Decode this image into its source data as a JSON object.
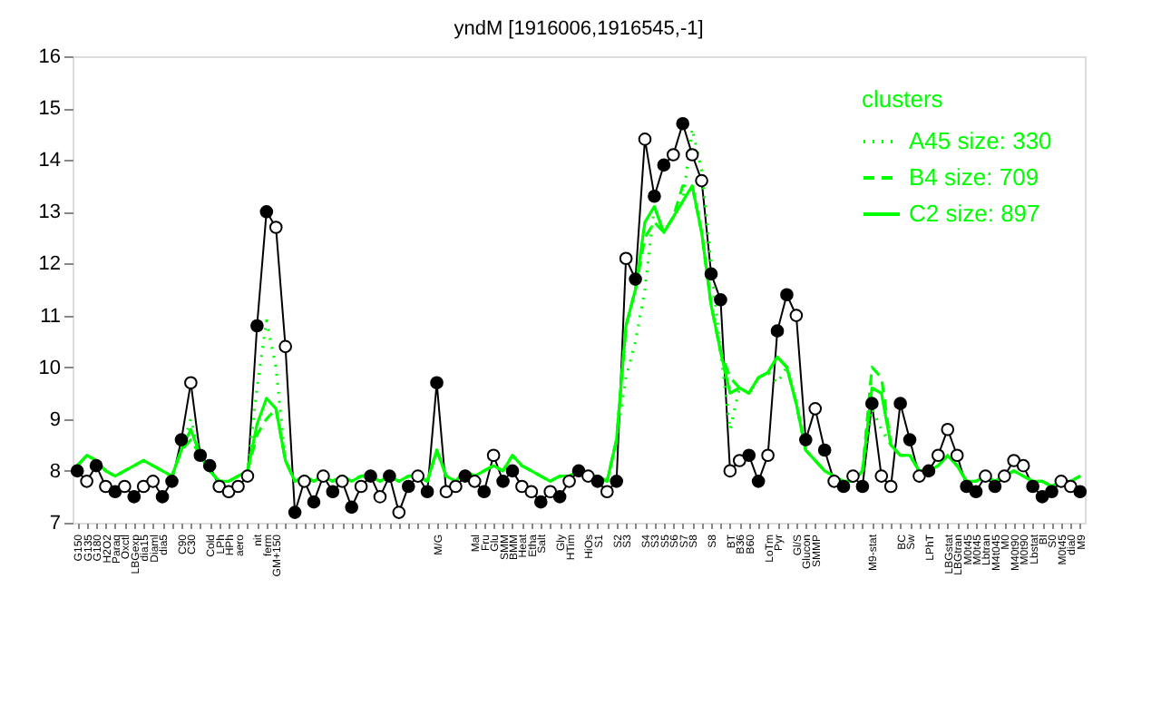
{
  "chart_data": {
    "type": "line",
    "title": "yndM [1916006,1916545,-1]",
    "legend_title": "clusters",
    "legend": "top right",
    "categories": [
      "G150",
      "G135",
      "G180",
      "H2O2",
      "Paraq",
      "Oxctl",
      "LBGexp",
      "dia15",
      "Diaml",
      "dia5",
      null,
      "C90",
      "C30",
      null,
      "Cold",
      "LPh",
      "HPh",
      "aero",
      null,
      "nit",
      "ferm",
      "GM+150",
      null,
      null,
      null,
      null,
      null,
      null,
      null,
      null,
      null,
      null,
      null,
      null,
      null,
      null,
      null,
      null,
      "M/G",
      null,
      null,
      null,
      "Mal",
      "Fru",
      "Glu",
      "SMM",
      "BMM",
      "Heat",
      "Etha",
      "Salt",
      null,
      "Gly",
      "HTim",
      null,
      "HiOs",
      "S1",
      null,
      "S2",
      "S3",
      null,
      "S4",
      "S3",
      "S5",
      "S6",
      "S7",
      "S8",
      null,
      "S8",
      null,
      "BT",
      "B36",
      "B60",
      null,
      "LoTm",
      "Pyr",
      null,
      "Gl/S",
      "Glucon",
      "SMMP",
      null,
      null,
      null,
      null,
      null,
      "M9-stat",
      null,
      null,
      "BC",
      "Sw",
      null,
      "LPhT",
      null,
      "LBGstat",
      "LBGtran",
      "M0t45",
      "M0t45",
      "Lbtran",
      "M4t045",
      "M0",
      "M40t90",
      "M0t90",
      "Lbstat",
      "BI",
      "S0",
      "M0t45",
      "dia0",
      "M9"
    ],
    "ylim": [
      7,
      16
    ],
    "yticks": [
      7,
      8,
      9,
      10,
      11,
      12,
      13,
      14,
      15,
      16
    ],
    "series": [
      {
        "marker": "circle",
        "color": "#000000",
        "values": [
          8.0,
          7.8,
          8.1,
          7.7,
          7.6,
          7.7,
          7.5,
          7.7,
          7.8,
          7.5,
          7.8,
          8.6,
          9.7,
          8.3,
          8.1,
          7.7,
          7.6,
          7.7,
          7.9,
          10.8,
          13.0,
          12.7,
          10.4,
          7.2,
          7.8,
          7.4,
          7.9,
          7.6,
          7.8,
          7.3,
          7.7,
          7.9,
          7.5,
          7.9,
          7.2,
          7.7,
          7.9,
          7.6,
          9.7,
          7.6,
          7.7,
          7.9,
          7.8,
          7.6,
          8.3,
          7.8,
          8.0,
          7.7,
          7.6,
          7.4,
          7.6,
          7.5,
          7.8,
          8.0,
          7.9,
          7.8,
          7.6,
          7.8,
          12.1,
          11.7,
          14.4,
          13.3,
          13.9,
          14.1,
          14.7,
          14.1,
          13.6,
          11.8,
          11.3,
          8.0,
          8.2,
          8.3,
          7.8,
          8.3,
          10.7,
          11.4,
          11.0,
          8.6,
          9.2,
          8.4,
          7.8,
          7.7,
          7.9,
          7.7,
          9.3,
          7.9,
          7.7,
          9.3,
          8.6,
          7.9,
          8.0,
          8.3,
          8.8,
          8.3,
          7.7,
          7.6,
          7.9,
          7.7,
          7.9,
          8.2,
          8.1,
          7.7,
          7.5,
          7.6,
          7.8,
          7.7,
          7.6
        ],
        "colors": [
          "#000000",
          "#ffffff",
          "#000000",
          "#ffffff",
          "#000000",
          "#ffffff",
          "#000000",
          "#ffffff",
          "#ffffff",
          "#000000",
          "#000000",
          "#000000",
          "#ffffff",
          "#000000",
          "#000000",
          "#ffffff",
          "#ffffff",
          "#ffffff",
          "#ffffff",
          "#000000",
          "#000000",
          "#ffffff",
          "#ffffff",
          "#000000",
          "#ffffff",
          "#000000",
          "#ffffff",
          "#000000",
          "#ffffff",
          "#000000",
          "#ffffff",
          "#000000",
          "#ffffff",
          "#000000",
          "#ffffff",
          "#000000",
          "#ffffff",
          "#000000",
          "#000000",
          "#ffffff",
          "#ffffff",
          "#000000",
          "#ffffff",
          "#000000",
          "#ffffff",
          "#000000",
          "#000000",
          "#ffffff",
          "#ffffff",
          "#000000",
          "#ffffff",
          "#000000",
          "#ffffff",
          "#000000",
          "#ffffff",
          "#000000",
          "#ffffff",
          "#000000",
          "#ffffff",
          "#000000",
          "#ffffff",
          "#000000",
          "#000000",
          "#ffffff",
          "#000000",
          "#ffffff",
          "#ffffff",
          "#000000",
          "#000000",
          "#ffffff",
          "#ffffff",
          "#000000",
          "#000000",
          "#ffffff",
          "#000000",
          "#000000",
          "#ffffff",
          "#000000",
          "#ffffff",
          "#000000",
          "#ffffff",
          "#000000",
          "#ffffff",
          "#000000",
          "#000000",
          "#ffffff",
          "#ffffff",
          "#000000",
          "#000000",
          "#ffffff",
          "#000000",
          "#ffffff",
          "#ffffff",
          "#ffffff",
          "#000000",
          "#000000",
          "#ffffff",
          "#000000",
          "#ffffff",
          "#ffffff",
          "#ffffff",
          "#000000",
          "#000000",
          "#000000",
          "#ffffff",
          "#ffffff",
          "#000000"
        ]
      },
      {
        "name": "A45 size: 330",
        "color": "#00ff00",
        "line_style": "dotted",
        "values": [
          8.1,
          8.3,
          8.2,
          8.0,
          7.9,
          8.0,
          8.1,
          8.2,
          8.1,
          8.0,
          7.9,
          8.4,
          9.0,
          8.3,
          8.0,
          7.8,
          7.8,
          7.9,
          8.0,
          9.6,
          10.9,
          10.0,
          8.2,
          7.8,
          7.9,
          7.8,
          7.9,
          7.8,
          7.9,
          7.8,
          7.9,
          7.9,
          7.8,
          7.9,
          7.8,
          7.9,
          7.9,
          7.8,
          8.4,
          7.9,
          7.8,
          8.0,
          7.9,
          8.0,
          8.1,
          8.0,
          8.3,
          8.1,
          8.0,
          7.9,
          7.8,
          7.9,
          7.9,
          8.0,
          7.9,
          7.9,
          7.8,
          8.6,
          9.8,
          10.5,
          11.5,
          13.1,
          12.6,
          12.9,
          13.2,
          14.6,
          13.8,
          12.0,
          10.3,
          8.8,
          9.6,
          9.5,
          9.8,
          9.9,
          9.7,
          10.0,
          9.3,
          8.4,
          8.2,
          8.0,
          7.9,
          7.8,
          7.8,
          8.0,
          9.2,
          8.8,
          8.5,
          8.3,
          8.3,
          8.0,
          8.0,
          8.1,
          8.3,
          8.1,
          7.8,
          7.8,
          7.9,
          7.8,
          7.9,
          8.0,
          7.9,
          7.8,
          7.8,
          7.7,
          7.8,
          7.8,
          7.9
        ]
      },
      {
        "name": "B4 size: 709",
        "color": "#00ff00",
        "line_style": "dashed",
        "values": [
          8.1,
          8.3,
          8.2,
          8.0,
          7.9,
          8.0,
          8.1,
          8.2,
          8.1,
          8.0,
          7.9,
          8.4,
          8.6,
          8.3,
          8.0,
          7.8,
          7.8,
          7.9,
          8.0,
          8.7,
          9.0,
          9.2,
          8.2,
          7.8,
          7.9,
          7.8,
          7.9,
          7.8,
          7.9,
          7.8,
          7.9,
          7.9,
          7.8,
          7.9,
          7.8,
          7.9,
          7.9,
          7.8,
          8.4,
          7.9,
          7.8,
          8.0,
          7.9,
          8.0,
          8.1,
          8.0,
          8.3,
          8.1,
          8.0,
          7.9,
          7.8,
          7.9,
          7.9,
          8.0,
          7.9,
          7.9,
          7.8,
          8.6,
          10.8,
          11.5,
          12.5,
          12.8,
          12.6,
          12.9,
          13.5,
          13.5,
          12.6,
          11.2,
          10.3,
          9.8,
          9.6,
          9.5,
          9.8,
          9.9,
          10.2,
          10.0,
          9.3,
          8.4,
          8.2,
          8.0,
          7.9,
          7.8,
          7.8,
          8.0,
          10.0,
          9.8,
          8.5,
          8.3,
          8.3,
          8.0,
          8.0,
          8.1,
          8.3,
          8.1,
          7.8,
          7.8,
          7.9,
          7.8,
          7.9,
          8.0,
          7.9,
          7.8,
          7.8,
          7.7,
          7.8,
          7.8,
          7.9
        ]
      },
      {
        "name": "C2 size: 897",
        "color": "#00ff00",
        "line_style": "solid",
        "values": [
          8.1,
          8.3,
          8.2,
          8.0,
          7.9,
          8.0,
          8.1,
          8.2,
          8.1,
          8.0,
          7.9,
          8.4,
          8.8,
          8.3,
          8.0,
          7.8,
          7.8,
          7.9,
          8.0,
          8.9,
          9.4,
          9.2,
          8.2,
          7.8,
          7.9,
          7.8,
          7.9,
          7.8,
          7.9,
          7.8,
          7.9,
          7.9,
          7.8,
          7.9,
          7.8,
          7.9,
          7.9,
          7.8,
          8.4,
          7.9,
          7.8,
          8.0,
          7.9,
          8.0,
          8.1,
          8.0,
          8.3,
          8.1,
          8.0,
          7.9,
          7.8,
          7.9,
          7.9,
          8.0,
          7.9,
          7.9,
          7.8,
          8.6,
          10.8,
          11.5,
          12.8,
          13.1,
          12.6,
          12.9,
          13.2,
          13.5,
          12.6,
          11.2,
          10.3,
          9.5,
          9.6,
          9.5,
          9.8,
          9.9,
          10.2,
          10.0,
          9.3,
          8.4,
          8.2,
          8.0,
          7.9,
          7.8,
          7.8,
          8.0,
          9.6,
          9.5,
          8.5,
          8.3,
          8.3,
          8.0,
          8.0,
          8.1,
          8.3,
          8.1,
          7.8,
          7.8,
          7.9,
          7.8,
          7.9,
          8.0,
          7.9,
          7.8,
          7.8,
          7.7,
          7.8,
          7.8,
          7.9
        ]
      }
    ]
  }
}
